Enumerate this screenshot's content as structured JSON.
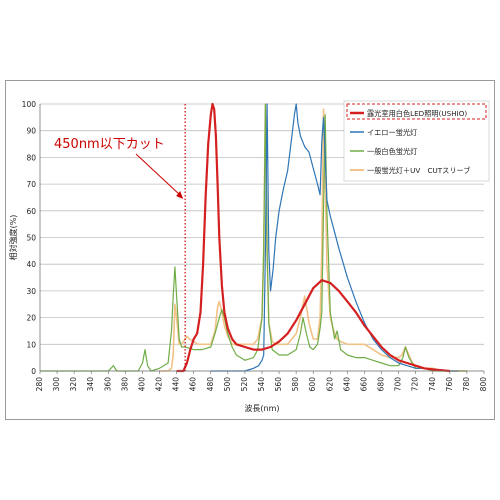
{
  "chart_data": {
    "type": "line",
    "xlabel": "波長(nm)",
    "ylabel": "相対強度(%)",
    "xlim": [
      280,
      800
    ],
    "ylim": [
      0,
      100
    ],
    "xticks": [
      280,
      300,
      320,
      340,
      360,
      380,
      400,
      420,
      440,
      460,
      480,
      500,
      520,
      540,
      560,
      580,
      600,
      620,
      640,
      660,
      680,
      700,
      720,
      740,
      760,
      780,
      800
    ],
    "yticks": [
      0,
      10,
      20,
      30,
      40,
      50,
      60,
      70,
      80,
      90,
      100
    ],
    "grid": "horizontal",
    "legend_position": "top-right",
    "cutoff": {
      "x": 450,
      "label": "450nm以下カット",
      "color": "#cc0000"
    },
    "series": [
      {
        "name": "露光室用白色LED照明(USHIO)",
        "color": "#d42020",
        "width": 2.2,
        "x": [
          440,
          448,
          452,
          456,
          460,
          464,
          468,
          471,
          474,
          477,
          480,
          482,
          484,
          486,
          488,
          490,
          493,
          496,
          500,
          505,
          510,
          520,
          530,
          540,
          550,
          560,
          570,
          580,
          590,
          600,
          610,
          620,
          630,
          640,
          650,
          660,
          670,
          680,
          690,
          700,
          710,
          720,
          730,
          740,
          750,
          760
        ],
        "y": [
          0,
          0,
          3,
          8,
          12,
          14,
          22,
          40,
          65,
          85,
          96,
          100,
          98,
          88,
          70,
          50,
          32,
          22,
          16,
          12,
          10,
          9,
          8,
          8,
          9,
          11,
          14,
          19,
          25,
          31,
          34,
          33,
          30,
          26,
          22,
          17,
          13,
          9,
          6,
          4,
          3,
          2,
          1,
          0.6,
          0.3,
          0
        ]
      },
      {
        "name": "イエロー蛍光灯",
        "color": "#2e75b6",
        "width": 1.2,
        "x": [
          480,
          500,
          520,
          530,
          536,
          540,
          542,
          544,
          546,
          548,
          550,
          553,
          556,
          560,
          565,
          570,
          575,
          578,
          580,
          582,
          585,
          590,
          595,
          600,
          605,
          608,
          610,
          612,
          614,
          616,
          620,
          625,
          630,
          640,
          650,
          660,
          670,
          680,
          690,
          700,
          710,
          720,
          730,
          740,
          750,
          760,
          770
        ],
        "y": [
          0,
          0,
          0,
          1,
          2,
          4,
          6,
          45,
          100,
          45,
          30,
          38,
          50,
          60,
          68,
          75,
          88,
          96,
          100,
          93,
          88,
          84,
          82,
          76,
          70,
          66,
          86,
          95,
          80,
          64,
          58,
          52,
          46,
          35,
          26,
          18,
          12,
          8,
          5,
          3,
          2,
          1,
          1,
          0.5,
          0.5,
          0,
          0
        ]
      },
      {
        "name": "一般白色蛍光灯",
        "color": "#70ad47",
        "width": 1.2,
        "x": [
          280,
          300,
          320,
          340,
          360,
          363,
          366,
          370,
          380,
          395,
          400,
          403,
          406,
          410,
          420,
          430,
          434,
          436,
          438,
          440,
          443,
          446,
          450,
          460,
          470,
          480,
          485,
          490,
          493,
          496,
          500,
          505,
          510,
          520,
          530,
          535,
          540,
          542,
          544,
          546,
          548,
          552,
          560,
          570,
          580,
          585,
          588,
          592,
          596,
          600,
          605,
          608,
          610,
          612,
          614,
          616,
          620,
          625,
          628,
          632,
          640,
          650,
          660,
          670,
          680,
          690,
          700,
          705,
          708,
          712,
          720,
          730,
          740,
          750,
          760,
          770,
          780
        ],
        "y": [
          0,
          0,
          0,
          0,
          0,
          1,
          2,
          0,
          0,
          0,
          3,
          8,
          2,
          0,
          1,
          3,
          15,
          28,
          39,
          28,
          12,
          9,
          9,
          8,
          8,
          9,
          14,
          20,
          23,
          20,
          14,
          9,
          6,
          4,
          5,
          8,
          20,
          45,
          100,
          45,
          18,
          8,
          6,
          6,
          8,
          14,
          20,
          14,
          9,
          8,
          10,
          16,
          22,
          60,
          96,
          60,
          22,
          12,
          15,
          8,
          6,
          5,
          5,
          4,
          3,
          2,
          2,
          5,
          9,
          5,
          1,
          1,
          0,
          0,
          0,
          0,
          0
        ]
      },
      {
        "name": "一般蛍光灯＋UV　CUTスリーブ",
        "color": "#f2c185",
        "width": 1.6,
        "x": [
          420,
          430,
          434,
          436,
          438,
          440,
          443,
          446,
          448,
          450,
          452,
          455,
          460,
          465,
          470,
          475,
          480,
          485,
          488,
          490,
          493,
          496,
          500,
          505,
          510,
          515,
          520,
          530,
          535,
          540,
          542,
          544,
          546,
          548,
          552,
          556,
          560,
          570,
          580,
          585,
          590,
          595,
          600,
          605,
          608,
          610,
          612,
          614,
          616,
          620,
          624,
          628,
          632,
          640,
          650,
          660,
          670,
          680,
          690,
          700,
          704,
          708,
          712,
          716,
          720,
          730,
          740,
          750,
          760,
          770,
          780
        ],
        "y": [
          0,
          0,
          1,
          6,
          25,
          20,
          10,
          10,
          11,
          12,
          13,
          12,
          11,
          10,
          10,
          10,
          10,
          15,
          24,
          26,
          22,
          17,
          13,
          10,
          10,
          10,
          10,
          10,
          12,
          20,
          45,
          100,
          45,
          18,
          11,
          10,
          10,
          10,
          14,
          20,
          28,
          18,
          12,
          12,
          20,
          45,
          98,
          75,
          40,
          20,
          15,
          12,
          11,
          10,
          10,
          10,
          8,
          6,
          5,
          5,
          6,
          9,
          6,
          3,
          2,
          1,
          1,
          0,
          0,
          0,
          0
        ]
      }
    ]
  }
}
